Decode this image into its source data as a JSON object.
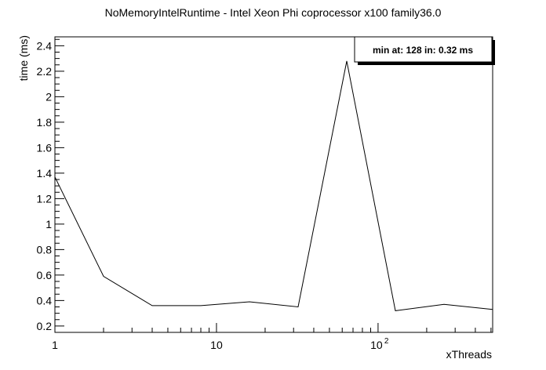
{
  "chart_data": {
    "type": "line",
    "title": "NoMemoryIntelRuntime - Intel Xeon Phi coprocessor x100 family36.0",
    "xlabel": "xThreads",
    "ylabel": "time (ms)",
    "x_scale": "log",
    "xlim": [
      1,
      512
    ],
    "ylim": [
      0.15,
      2.47
    ],
    "grid": false,
    "x_tick_labels": [
      {
        "value": 1,
        "label": "1",
        "sup": ""
      },
      {
        "value": 10,
        "label": "10",
        "sup": ""
      },
      {
        "value": 100,
        "label": "10",
        "sup": "2"
      }
    ],
    "y_ticks": [
      0.2,
      0.4,
      0.6,
      0.8,
      1,
      1.2,
      1.4,
      1.6,
      1.8,
      2,
      2.2,
      2.4
    ],
    "y_tick_labels": [
      "0.2",
      "0.4",
      "0.6",
      "0.8",
      "1",
      "1.2",
      "1.4",
      "1.6",
      "1.8",
      "2",
      "2.2",
      "2.4"
    ],
    "series": [
      {
        "x": [
          1,
          2,
          4,
          8,
          16,
          32,
          64,
          128,
          256,
          512
        ],
        "y": [
          1.37,
          0.59,
          0.36,
          0.36,
          0.39,
          0.35,
          2.28,
          0.32,
          0.37,
          0.33
        ],
        "color": "#000000"
      }
    ],
    "annotation": "min at: 128 in: 0.32 ms"
  }
}
